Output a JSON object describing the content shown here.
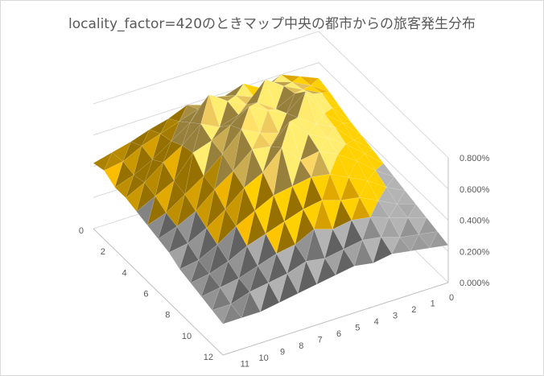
{
  "chart_data": {
    "type": "surface",
    "title": "locality_factor=420のときマップ中央の都市からの旅客発生分布",
    "x_ticks": [
      "0",
      "1",
      "2",
      "3",
      "4",
      "5",
      "6",
      "7",
      "8",
      "9",
      "10",
      "11"
    ],
    "y_ticks": [
      "0",
      "2",
      "4",
      "6",
      "8",
      "10",
      "12"
    ],
    "z_ticks": [
      "0.000%",
      "0.200%",
      "0.400%",
      "0.600%",
      "0.800%"
    ],
    "zlim": [
      0,
      0.8
    ],
    "z_unit": "%",
    "grid": true,
    "band_colors": [
      "#7f7f7f",
      "#a5a5a5",
      "#ffc000",
      "#ffd966"
    ],
    "grid_size": [
      13,
      13
    ],
    "z_values": [
      [
        0.5,
        0.55,
        0.6,
        0.55,
        0.62,
        0.58,
        0.56,
        0.6,
        0.55,
        0.52,
        0.48,
        0.45,
        0.42
      ],
      [
        0.48,
        0.56,
        0.62,
        0.66,
        0.6,
        0.65,
        0.68,
        0.64,
        0.6,
        0.56,
        0.52,
        0.46,
        0.44
      ],
      [
        0.45,
        0.58,
        0.64,
        0.7,
        0.78,
        0.66,
        0.72,
        0.8,
        0.66,
        0.58,
        0.5,
        0.44,
        0.4
      ],
      [
        0.42,
        0.55,
        0.68,
        0.72,
        0.66,
        0.74,
        0.7,
        0.66,
        0.72,
        0.62,
        0.55,
        0.46,
        0.4
      ],
      [
        0.4,
        0.52,
        0.62,
        0.8,
        0.7,
        0.76,
        0.82,
        0.74,
        0.68,
        0.64,
        0.5,
        0.44,
        0.38
      ],
      [
        0.38,
        0.48,
        0.6,
        0.66,
        0.74,
        0.68,
        0.72,
        0.78,
        0.66,
        0.56,
        0.48,
        0.4,
        0.36
      ],
      [
        0.36,
        0.46,
        0.56,
        0.64,
        0.7,
        0.82,
        0.7,
        0.72,
        0.62,
        0.54,
        0.44,
        0.38,
        0.34
      ],
      [
        0.34,
        0.42,
        0.52,
        0.6,
        0.66,
        0.64,
        0.76,
        0.64,
        0.58,
        0.48,
        0.4,
        0.34,
        0.32
      ],
      [
        0.32,
        0.38,
        0.46,
        0.52,
        0.58,
        0.6,
        0.58,
        0.56,
        0.5,
        0.44,
        0.36,
        0.3,
        0.28
      ],
      [
        0.3,
        0.34,
        0.4,
        0.46,
        0.48,
        0.52,
        0.5,
        0.46,
        0.42,
        0.38,
        0.32,
        0.28,
        0.26
      ],
      [
        0.28,
        0.32,
        0.36,
        0.4,
        0.42,
        0.4,
        0.44,
        0.38,
        0.36,
        0.32,
        0.28,
        0.26,
        0.24
      ],
      [
        0.26,
        0.28,
        0.3,
        0.34,
        0.36,
        0.34,
        0.32,
        0.34,
        0.3,
        0.28,
        0.26,
        0.22,
        0.22
      ],
      [
        0.24,
        0.26,
        0.28,
        0.3,
        0.28,
        0.3,
        0.28,
        0.26,
        0.24,
        0.22,
        0.2,
        0.2,
        0.2
      ]
    ]
  }
}
